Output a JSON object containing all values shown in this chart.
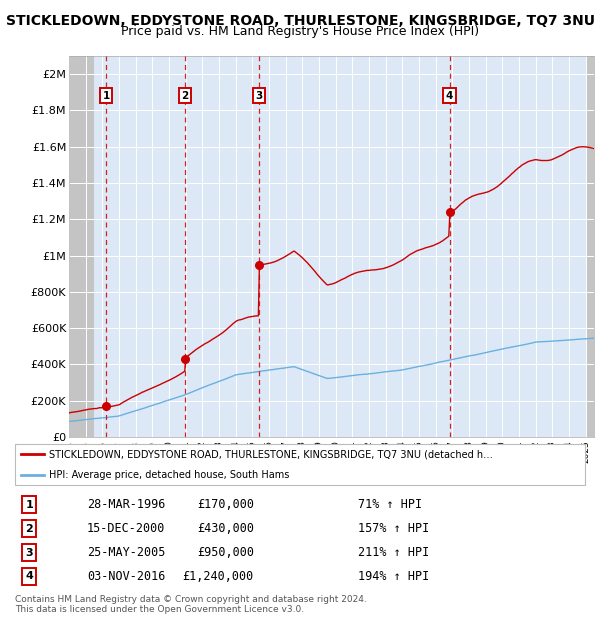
{
  "title": "STICKLEDOWN, EDDYSTONE ROAD, THURLESTONE, KINGSBRIDGE, TQ7 3NU",
  "subtitle": "Price paid vs. HM Land Registry's House Price Index (HPI)",
  "xlim": [
    1994.0,
    2025.5
  ],
  "ylim": [
    0,
    2100000
  ],
  "yticks": [
    0,
    200000,
    400000,
    600000,
    800000,
    1000000,
    1200000,
    1400000,
    1600000,
    1800000,
    2000000
  ],
  "ytick_labels": [
    "£0",
    "£200K",
    "£400K",
    "£600K",
    "£800K",
    "£1M",
    "£1.2M",
    "£1.4M",
    "£1.6M",
    "£1.8M",
    "£2M"
  ],
  "xtick_years": [
    1994,
    1995,
    1996,
    1997,
    1998,
    1999,
    2000,
    2001,
    2002,
    2003,
    2004,
    2005,
    2006,
    2007,
    2008,
    2009,
    2010,
    2011,
    2012,
    2013,
    2014,
    2015,
    2016,
    2017,
    2018,
    2019,
    2020,
    2021,
    2022,
    2023,
    2024,
    2025
  ],
  "sale_dates": [
    1996.23,
    2000.96,
    2005.39,
    2016.84
  ],
  "sale_prices": [
    170000,
    430000,
    950000,
    1240000
  ],
  "sale_labels": [
    "1",
    "2",
    "3",
    "4"
  ],
  "red_line_color": "#cc0000",
  "blue_line_color": "#6ab0e0",
  "hpi_label": "HPI: Average price, detached house, South Hams",
  "property_label": "STICKLEDOWN, EDDYSTONE ROAD, THURLESTONE, KINGSBRIDGE, TQ7 3NU (detached h…",
  "footer_line1": "Contains HM Land Registry data © Crown copyright and database right 2024.",
  "footer_line2": "This data is licensed under the Open Government Licence v3.0.",
  "background_color": "#dce8f5",
  "title_fontsize": 10,
  "subtitle_fontsize": 9,
  "hatch_left_end": 1995.5,
  "hatch_right_start": 2025.0,
  "table_data": [
    [
      "1",
      "28-MAR-1996",
      "£170,000",
      "71% ↑ HPI"
    ],
    [
      "2",
      "15-DEC-2000",
      "£430,000",
      "157% ↑ HPI"
    ],
    [
      "3",
      "25-MAY-2005",
      "£950,000",
      "211% ↑ HPI"
    ],
    [
      "4",
      "03-NOV-2016",
      "£1,240,000",
      "194% ↑ HPI"
    ]
  ]
}
